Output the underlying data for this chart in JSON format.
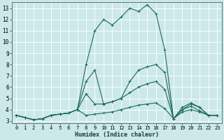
{
  "xlabel": "Humidex (Indice chaleur)",
  "bg_color": "#cce8e8",
  "grid_color": "#b0d8d8",
  "line_color": "#1a6b5a",
  "xlim": [
    -0.5,
    23.5
  ],
  "ylim": [
    2.8,
    13.5
  ],
  "yticks": [
    3,
    4,
    5,
    6,
    7,
    8,
    9,
    10,
    11,
    12,
    13
  ],
  "xticks": [
    0,
    1,
    2,
    3,
    4,
    5,
    6,
    7,
    8,
    9,
    10,
    11,
    12,
    13,
    14,
    15,
    16,
    17,
    18,
    19,
    20,
    21,
    22,
    23
  ],
  "series": [
    [
      3.5,
      3.3,
      3.1,
      3.2,
      3.5,
      3.6,
      3.7,
      4.0,
      8.0,
      11.0,
      12.0,
      11.5,
      12.2,
      13.0,
      12.7,
      13.3,
      12.5,
      9.3,
      3.2,
      4.2,
      4.6,
      4.2,
      3.5,
      3.5
    ],
    [
      3.5,
      3.3,
      3.1,
      3.2,
      3.5,
      3.6,
      3.7,
      4.0,
      6.5,
      7.5,
      4.5,
      4.7,
      5.0,
      6.5,
      7.5,
      7.8,
      8.0,
      7.3,
      3.2,
      4.0,
      4.5,
      4.2,
      3.5,
      3.5
    ],
    [
      3.5,
      3.3,
      3.1,
      3.2,
      3.5,
      3.6,
      3.7,
      4.0,
      5.4,
      4.5,
      4.5,
      4.7,
      5.0,
      5.5,
      6.0,
      6.3,
      6.5,
      5.8,
      3.2,
      4.0,
      4.3,
      3.9,
      3.5,
      3.5
    ],
    [
      3.5,
      3.3,
      3.1,
      3.2,
      3.5,
      3.6,
      3.7,
      4.0,
      3.5,
      3.6,
      3.7,
      3.8,
      4.0,
      4.2,
      4.4,
      4.5,
      4.6,
      4.1,
      3.2,
      3.8,
      4.0,
      3.8,
      3.5,
      3.5
    ]
  ]
}
